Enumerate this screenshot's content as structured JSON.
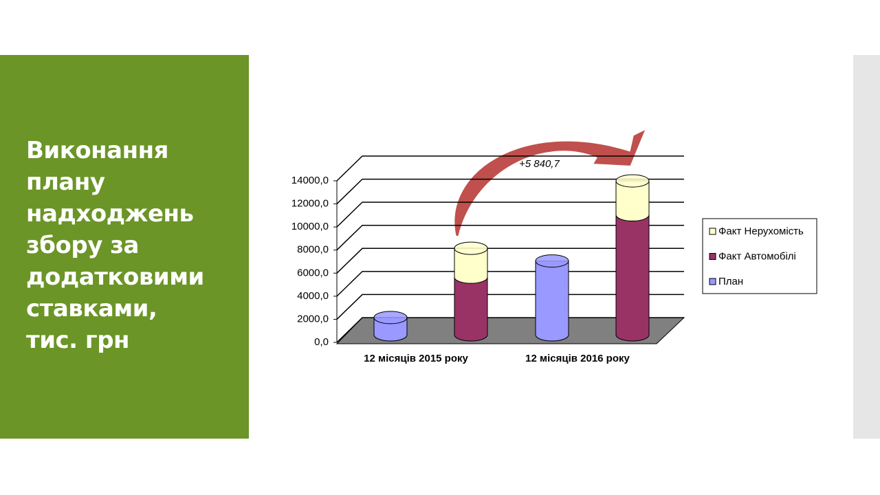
{
  "slide_title": "Виконання плану надходжень збору за додатковими ставками, тис. грн",
  "chart_data": {
    "type": "cylinder-bar",
    "categories": [
      "12 місяців 2015 року",
      "12 місяців 2016 року"
    ],
    "series": [
      {
        "name": "План",
        "color": "#9999ff",
        "values": [
          1500,
          6400
        ]
      },
      {
        "name": "Факт Автомобілі",
        "color": "#993366",
        "values": [
          5000,
          10400
        ]
      },
      {
        "name": "Факт Нерухомість",
        "color": "#ffffcc",
        "values": [
          2500,
          2940
        ]
      }
    ],
    "ylim": [
      0,
      14000
    ],
    "yticks": [
      {
        "value": 0,
        "label": "0,0"
      },
      {
        "value": 2000,
        "label": "2000,0"
      },
      {
        "value": 4000,
        "label": "4000,0"
      },
      {
        "value": 6000,
        "label": "6000,0"
      },
      {
        "value": 8000,
        "label": "8000,0"
      },
      {
        "value": 10000,
        "label": "10000,0"
      },
      {
        "value": 12000,
        "label": "12000,0"
      },
      {
        "value": 14000,
        "label": "14000,0"
      }
    ],
    "grid": true,
    "annotation": "+5 840,7"
  }
}
